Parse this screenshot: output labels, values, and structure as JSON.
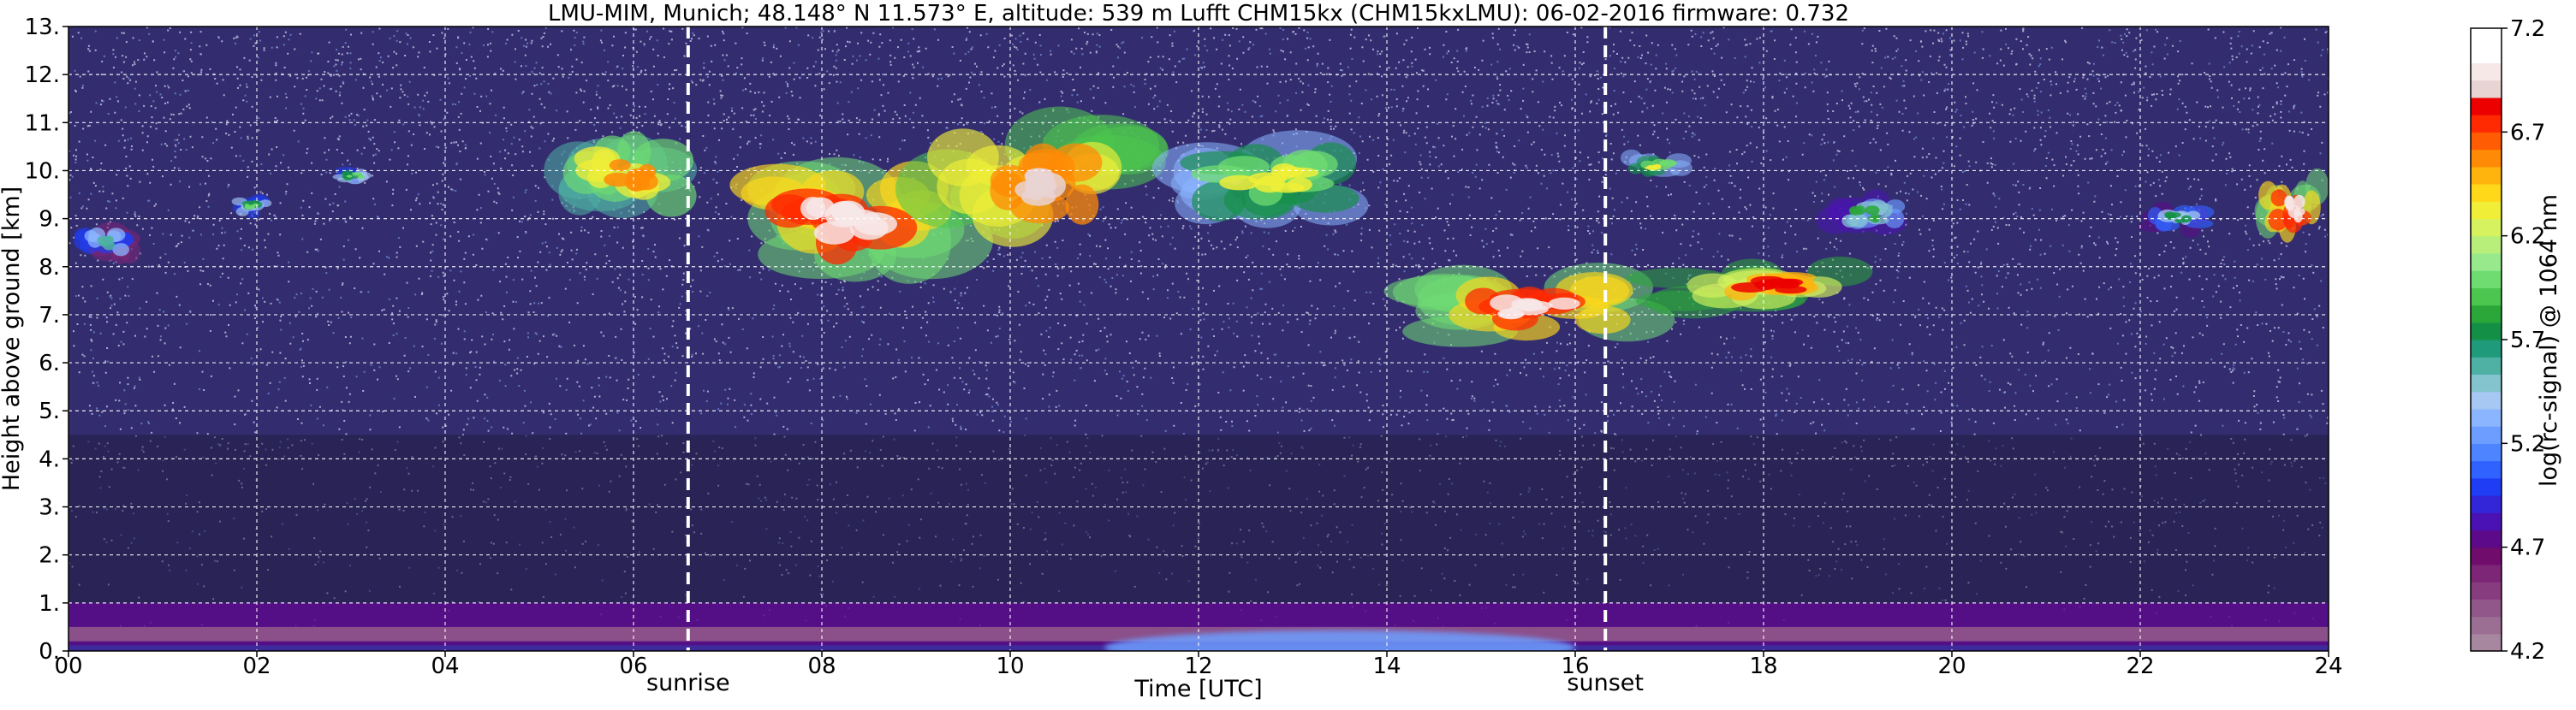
{
  "chart_data": {
    "type": "heatmap",
    "title": "LMU-MIM, Munich; 48.148° N 11.573° E, altitude: 539 m    Lufft CHM15kx (CHM15kxLMU): 06-02-2016    firmware: 0.732",
    "xlabel": "Time [UTC]",
    "ylabel": "Height above ground [km]",
    "xlim": [
      0,
      24
    ],
    "ylim": [
      0,
      13
    ],
    "x_ticks": [
      "00",
      "02",
      "04",
      "06",
      "08",
      "10",
      "12",
      "14",
      "16",
      "18",
      "20",
      "22",
      "24"
    ],
    "y_ticks": [
      "0.",
      "1.",
      "2.",
      "3.",
      "4.",
      "5.",
      "6.",
      "7.",
      "8.",
      "9.",
      "10.",
      "11.",
      "12.",
      "13."
    ],
    "grid": true,
    "markers": [
      {
        "name": "sunrise",
        "x": 6.58
      },
      {
        "name": "sunset",
        "x": 16.32
      }
    ],
    "colorbar": {
      "label": "log(rc-signal) @ 1064 nm",
      "min": 4.2,
      "max": 7.2,
      "ticks": [
        "4.2",
        "4.7",
        "5.2",
        "5.7",
        "6.2",
        "6.7",
        "7.2"
      ],
      "colors": [
        "#a7879f",
        "#9b6e93",
        "#91568a",
        "#873c7f",
        "#7d2576",
        "#700c6c",
        "#5c0a8a",
        "#4a12b4",
        "#3325d8",
        "#1e3df5",
        "#2f62ff",
        "#4e84ff",
        "#6d9eff",
        "#8bb5ff",
        "#a6c8f2",
        "#83c4cf",
        "#4fb1a3",
        "#1f9a7a",
        "#149046",
        "#2ba73a",
        "#4cc64e",
        "#6fdc72",
        "#97e98b",
        "#b7ef7a",
        "#d6f25e",
        "#f0ee37",
        "#ffd81a",
        "#ffb30d",
        "#ff8a06",
        "#ff5c03",
        "#ff2a01",
        "#ec0000",
        "#e9d4d4",
        "#f7e8e8",
        "#ffffff",
        "#ffffff"
      ]
    },
    "features": [
      {
        "kind": "cirrus",
        "x_start": 0.0,
        "x_end": 0.8,
        "z_bottom": 8.0,
        "z_top": 9.0,
        "peak": 5.6
      },
      {
        "kind": "cirrus",
        "x_start": 1.7,
        "x_end": 2.2,
        "z_bottom": 9.0,
        "z_top": 9.5,
        "peak": 6.0
      },
      {
        "kind": "cirrus",
        "x_start": 2.8,
        "x_end": 3.3,
        "z_bottom": 9.7,
        "z_top": 10.1,
        "peak": 6.0
      },
      {
        "kind": "cirrus",
        "x_start": 5.0,
        "x_end": 6.8,
        "z_bottom": 8.8,
        "z_top": 11.0,
        "peak": 6.6
      },
      {
        "kind": "cirrus",
        "x_start": 6.8,
        "x_end": 9.6,
        "z_bottom": 7.5,
        "z_top": 10.5,
        "peak": 7.0
      },
      {
        "kind": "cirrus",
        "x_start": 9.0,
        "x_end": 11.5,
        "z_bottom": 8.2,
        "z_top": 11.2,
        "peak": 6.9
      },
      {
        "kind": "cirrus",
        "x_start": 11.5,
        "x_end": 14.0,
        "z_bottom": 8.8,
        "z_top": 10.8,
        "peak": 6.3
      },
      {
        "kind": "cirrus",
        "x_start": 14.3,
        "x_end": 16.8,
        "z_bottom": 6.2,
        "z_top": 8.0,
        "peak": 7.0
      },
      {
        "kind": "cirrus",
        "x_start": 16.8,
        "x_end": 19.2,
        "z_bottom": 7.0,
        "z_top": 8.2,
        "peak": 6.8
      },
      {
        "kind": "cirrus",
        "x_start": 16.5,
        "x_end": 17.2,
        "z_bottom": 9.8,
        "z_top": 10.4,
        "peak": 6.3
      },
      {
        "kind": "cirrus",
        "x_start": 18.6,
        "x_end": 19.6,
        "z_bottom": 8.6,
        "z_top": 9.6,
        "peak": 5.8
      },
      {
        "kind": "cirrus",
        "x_start": 22.0,
        "x_end": 22.8,
        "z_bottom": 8.6,
        "z_top": 9.4,
        "peak": 5.7
      },
      {
        "kind": "cirrus",
        "x_start": 23.2,
        "x_end": 24.0,
        "z_bottom": 8.4,
        "z_top": 10.0,
        "peak": 7.0
      },
      {
        "kind": "boundary-layer",
        "x_start": 0.0,
        "x_end": 24.0,
        "z_bottom": 0.0,
        "z_top": 1.0,
        "peak": 4.7
      },
      {
        "kind": "aerosol",
        "x_start": 11.0,
        "x_end": 16.0,
        "z_bottom": 0.0,
        "z_top": 0.6,
        "peak": 5.2
      }
    ]
  }
}
